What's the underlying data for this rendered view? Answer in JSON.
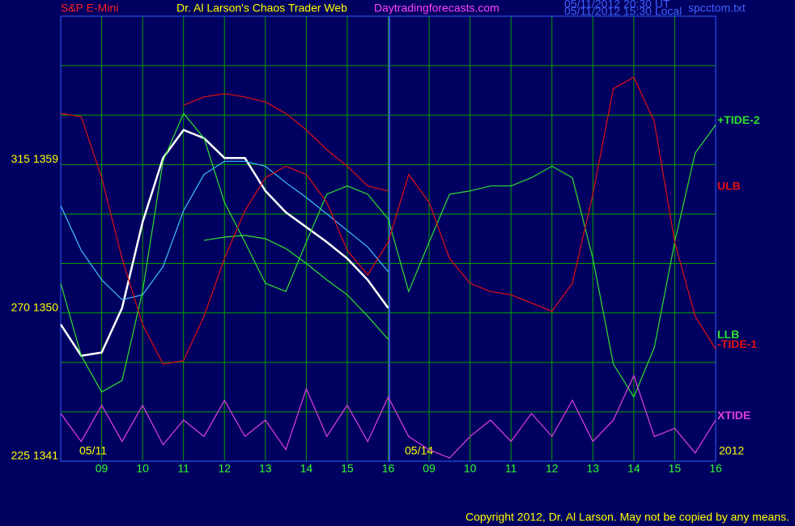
{
  "chart_data": {
    "type": "line",
    "title": "S&P E-Mini",
    "subtitle": "Dr. Al Larson's Chaos Trader Web",
    "site": "Daytradingforecasts.com",
    "timestamp_ut": "05/11/2012 20:30 UT",
    "timestamp_local": "05/11/2012 15:30 Local",
    "file": "spcctom.txt",
    "date_labels": [
      "05/11",
      "05/14"
    ],
    "year": "2012",
    "copyright": "Copyright 2012, Dr. Al Larson. May not be copied by any means.",
    "xlim": [
      0,
      16
    ],
    "ylim": [
      1341,
      1368
    ],
    "xticks": [
      {
        "value": 1,
        "label": "09"
      },
      {
        "value": 2,
        "label": "10"
      },
      {
        "value": 3,
        "label": "11"
      },
      {
        "value": 4,
        "label": "12"
      },
      {
        "value": 5,
        "label": "13"
      },
      {
        "value": 6,
        "label": "14"
      },
      {
        "value": 7,
        "label": "15"
      },
      {
        "value": 8,
        "label": "16"
      },
      {
        "value": 9,
        "label": "09"
      },
      {
        "value": 10,
        "label": "10"
      },
      {
        "value": 11,
        "label": "11"
      },
      {
        "value": 12,
        "label": "12"
      },
      {
        "value": 13,
        "label": "13"
      },
      {
        "value": 14,
        "label": "14"
      },
      {
        "value": 15,
        "label": "15"
      },
      {
        "value": 16,
        "label": "16"
      }
    ],
    "xgrid": [
      0,
      1,
      2,
      3,
      4,
      5,
      6,
      7,
      8,
      9,
      10,
      11,
      12,
      13,
      14,
      15,
      16
    ],
    "yticks": [
      {
        "value": 1341,
        "label": "225  1341"
      },
      {
        "value": 1350,
        "label": "270  1350"
      },
      {
        "value": 1359,
        "label": "315  1359"
      }
    ],
    "ygrid": [
      1341,
      1344,
      1347,
      1350,
      1353,
      1356,
      1359,
      1362,
      1365,
      1368
    ],
    "grid": true,
    "series": [
      {
        "color": "#ffffff",
        "x": [
          0,
          0.5,
          1,
          1.5,
          2,
          2.5,
          3,
          3.5,
          4,
          4.5,
          5,
          5.5,
          6,
          6.5,
          7,
          7.5,
          8
        ],
        "values": [
          1349.3,
          1347.4,
          1347.6,
          1350.3,
          1355.5,
          1359.4,
          1361.1,
          1360.6,
          1359.4,
          1359.4,
          1357.4,
          1356.1,
          1355.2,
          1354.3,
          1353.3,
          1352.0,
          1350.3
        ]
      },
      {
        "color": "#40c0ff",
        "x": [
          0,
          0.5,
          1,
          1.5,
          2,
          2.5,
          3,
          3.5,
          4,
          4.5,
          5,
          5.5,
          6,
          6.5,
          7,
          7.5,
          8
        ],
        "values": [
          1356.5,
          1353.8,
          1352.0,
          1350.8,
          1351.1,
          1352.8,
          1356.2,
          1358.4,
          1359.2,
          1359.2,
          1358.9,
          1357.9,
          1357.0,
          1356.0,
          1355.0,
          1354.0,
          1352.5
        ]
      },
      {
        "name": "+TIDE-2",
        "color": "#30e030",
        "x": [
          0,
          0.5,
          1,
          1.5,
          2,
          2.5,
          3,
          3.5,
          4,
          4.5,
          5,
          5.5,
          6,
          6.5,
          7,
          7.5,
          8,
          8.5,
          9,
          9.5,
          10,
          10.5,
          11,
          11.5,
          12,
          12.5,
          13,
          13.5,
          14,
          14.5,
          15,
          15.5,
          16
        ],
        "values": [
          1351.8,
          1347.4,
          1345.2,
          1345.9,
          1351.3,
          1359.2,
          1362.1,
          1360.6,
          1356.7,
          1354.3,
          1351.8,
          1351.3,
          1354.3,
          1357.2,
          1357.7,
          1357.2,
          1355.7,
          1351.3,
          1354.3,
          1357.2,
          1357.4,
          1357.7,
          1357.7,
          1358.2,
          1358.9,
          1358.2,
          1353.3,
          1346.9,
          1344.9,
          1347.9,
          1354.3,
          1359.7,
          1361.4
        ]
      },
      {
        "name": "ULB",
        "color": "#e01010",
        "x": [
          3,
          3.5,
          4,
          4.5,
          5,
          5.5,
          6,
          6.5,
          7,
          7.5,
          8
        ],
        "values": [
          1362.6,
          1363.1,
          1363.3,
          1363.1,
          1362.8,
          1362.1,
          1361.1,
          1359.9,
          1358.9,
          1357.7,
          1357.4
        ]
      },
      {
        "name": "LLB",
        "color": "#30e030",
        "x": [
          3.5,
          4,
          4.5,
          5,
          5.5,
          6,
          6.5,
          7,
          7.5,
          8
        ],
        "values": [
          1354.4,
          1354.6,
          1354.7,
          1354.5,
          1353.9,
          1353.0,
          1352.0,
          1351.1,
          1349.8,
          1348.4
        ]
      },
      {
        "name": "-TIDE-1",
        "color": "#e01010",
        "x": [
          0,
          0.5,
          1,
          1.5,
          2,
          2.5,
          3,
          3.5,
          4,
          4.5,
          5,
          5.5,
          6,
          6.5,
          7,
          7.5,
          8,
          8.5,
          9,
          9.5,
          10,
          10.5,
          11,
          11.5,
          12,
          12.5,
          13,
          13.5,
          14,
          14.5,
          15,
          15.5,
          16
        ],
        "values": [
          1362.1,
          1361.9,
          1358.2,
          1353.3,
          1349.3,
          1346.9,
          1347.1,
          1349.8,
          1353.3,
          1356.2,
          1358.2,
          1358.9,
          1358.4,
          1356.7,
          1353.8,
          1352.3,
          1354.3,
          1358.4,
          1356.7,
          1353.3,
          1351.8,
          1351.3,
          1351.1,
          1350.6,
          1350.1,
          1351.8,
          1357.2,
          1363.6,
          1364.3,
          1361.6,
          1354.3,
          1349.8,
          1347.8
        ]
      },
      {
        "name": "XTIDE",
        "color": "#e040e0",
        "x": [
          0,
          0.5,
          1,
          1.5,
          2,
          2.5,
          3,
          3.5,
          4,
          4.5,
          5,
          5.5,
          6,
          6.5,
          7,
          7.5,
          8,
          8.5,
          9,
          9.5,
          10,
          10.5,
          11,
          11.5,
          12,
          12.5,
          13,
          13.5,
          14,
          14.5,
          15,
          15.5,
          16
        ],
        "values": [
          1343.9,
          1342.2,
          1344.4,
          1342.2,
          1344.4,
          1342.0,
          1343.5,
          1342.5,
          1344.7,
          1342.5,
          1343.5,
          1341.7,
          1345.4,
          1342.5,
          1344.4,
          1342.2,
          1344.9,
          1342.5,
          1341.7,
          1341.2,
          1342.5,
          1343.5,
          1342.2,
          1343.9,
          1342.5,
          1344.7,
          1342.2,
          1343.5,
          1346.2,
          1342.5,
          1343.0,
          1341.5,
          1343.5
        ]
      }
    ]
  }
}
